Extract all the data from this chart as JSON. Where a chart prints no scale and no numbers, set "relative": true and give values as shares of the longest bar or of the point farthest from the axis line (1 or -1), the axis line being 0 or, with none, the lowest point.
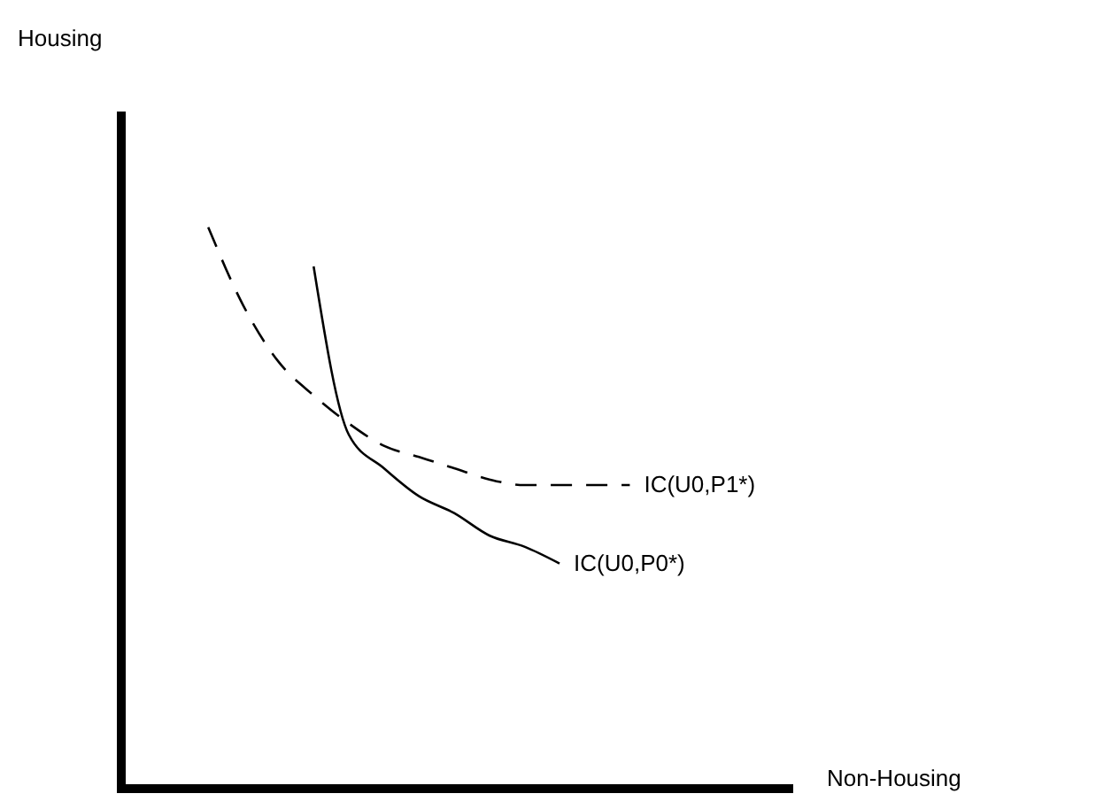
{
  "chart_data": {
    "type": "line",
    "relative": true,
    "xlabel": "Non-Housing",
    "annotations": [
      "Housing"
    ],
    "categories": [
      null,
      null,
      null,
      null,
      null,
      null,
      null,
      null,
      null,
      null,
      null,
      null,
      null,
      null,
      null,
      null,
      null,
      null,
      null
    ],
    "series": [
      {
        "name": "IC(U0,P1*)",
        "color": "#000000",
        "line_style": "dashed",
        "values": [
          null,
          null,
          1.0,
          0.86,
          0.76,
          0.7,
          0.65,
          0.61,
          0.59,
          0.57,
          0.55,
          0.54,
          0.54,
          0.54,
          0.54,
          null,
          null,
          null,
          null
        ]
      },
      {
        "name": "IC(U0,P0*)",
        "color": "#000000",
        "line_style": "solid",
        "values": [
          null,
          null,
          null,
          null,
          null,
          0.93,
          0.63,
          0.57,
          0.52,
          0.49,
          0.45,
          0.43,
          0.4,
          null,
          null,
          null,
          null,
          null,
          null
        ]
      }
    ],
    "marker": "none"
  }
}
